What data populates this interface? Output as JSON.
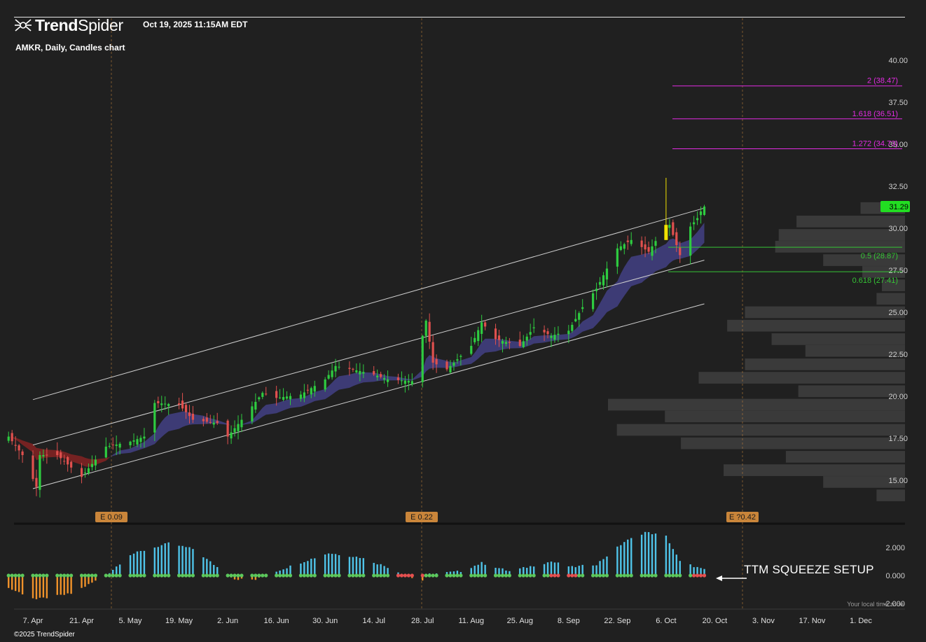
{
  "header": {
    "brand_bold": "Trend",
    "brand_light": "Spider",
    "timestamp": "Oct 19, 2025 11:15AM EDT",
    "chart_title": "AMKR, Daily, Candles chart"
  },
  "footer": {
    "copyright": "©2025 TrendSpider",
    "timezone_note": "Your local time zone"
  },
  "annotation": {
    "text": "TTM SQUEEZE SETUP"
  },
  "colors": {
    "background": "#202020",
    "up_candle": "#2ecc40",
    "down_candle": "#e0504e",
    "highlight_candle": "#f2e200",
    "fib_extension": "#e22be2",
    "fib_retracement": "#35c435",
    "channel_line": "#cfcfcf",
    "ema_band_bull": "#3f3d7a",
    "ema_band_bear": "#7a2323",
    "volume_profile": "#3a3a3a",
    "histogram_pos": "#4fc3e8",
    "histogram_neg": "#f0922a",
    "squeeze_on": "#e65050",
    "squeeze_off": "#5cc85c",
    "earnings_badge": "#c9853a",
    "last_price_badge": "#22dd22"
  },
  "chart_data": [
    {
      "type": "candlestick",
      "symbol": "AMKR",
      "interval": "Daily",
      "y_axis": {
        "range": [
          13.7,
          41.2
        ],
        "ticks": [
          "40.00",
          "37.50",
          "35.00",
          "32.50",
          "30.00",
          "27.50",
          "25.00",
          "22.50",
          "20.00",
          "17.50",
          "15.00"
        ]
      },
      "x_axis": {
        "start_date": "2025-03-31",
        "end_date": "2025-12-08",
        "tick_labels": [
          {
            "label": "7. Apr",
            "date": "2025-04-07"
          },
          {
            "label": "21. Apr",
            "date": "2025-04-21"
          },
          {
            "label": "5. May",
            "date": "2025-05-05"
          },
          {
            "label": "19. May",
            "date": "2025-05-19"
          },
          {
            "label": "2. Jun",
            "date": "2025-06-02"
          },
          {
            "label": "16. Jun",
            "date": "2025-06-16"
          },
          {
            "label": "30. Jun",
            "date": "2025-06-30"
          },
          {
            "label": "14. Jul",
            "date": "2025-07-14"
          },
          {
            "label": "28. Jul",
            "date": "2025-07-28"
          },
          {
            "label": "11. Aug",
            "date": "2025-08-11"
          },
          {
            "label": "25. Aug",
            "date": "2025-08-25"
          },
          {
            "label": "8. Sep",
            "date": "2025-09-08"
          },
          {
            "label": "22. Sep",
            "date": "2025-09-22"
          },
          {
            "label": "6. Oct",
            "date": "2025-10-06"
          },
          {
            "label": "20. Oct",
            "date": "2025-10-20"
          },
          {
            "label": "3. Nov",
            "date": "2025-11-03"
          },
          {
            "label": "17. Nov",
            "date": "2025-11-17"
          },
          {
            "label": "1. Dec",
            "date": "2025-12-01"
          }
        ]
      },
      "last_price": "31.29",
      "anchors": [
        {
          "date": "2025-03-31",
          "close": 17.6
        },
        {
          "date": "2025-04-04",
          "close": 16.5
        },
        {
          "date": "2025-04-08",
          "close": 14.6
        },
        {
          "date": "2025-04-09",
          "close": 16.5
        },
        {
          "date": "2025-04-14",
          "close": 16.5
        },
        {
          "date": "2025-04-21",
          "close": 15.2
        },
        {
          "date": "2025-04-28",
          "close": 17.0
        },
        {
          "date": "2025-05-05",
          "close": 17.3
        },
        {
          "date": "2025-05-09",
          "close": 17.6
        },
        {
          "date": "2025-05-12",
          "close": 19.6
        },
        {
          "date": "2025-05-19",
          "close": 19.5
        },
        {
          "date": "2025-05-23",
          "close": 18.6
        },
        {
          "date": "2025-05-30",
          "close": 18.4
        },
        {
          "date": "2025-06-02",
          "close": 17.6
        },
        {
          "date": "2025-06-06",
          "close": 18.6
        },
        {
          "date": "2025-06-12",
          "close": 20.2
        },
        {
          "date": "2025-06-16",
          "close": 19.9
        },
        {
          "date": "2025-06-23",
          "close": 20.1
        },
        {
          "date": "2025-06-30",
          "close": 21.0
        },
        {
          "date": "2025-07-03",
          "close": 21.8
        },
        {
          "date": "2025-07-10",
          "close": 21.5
        },
        {
          "date": "2025-07-14",
          "close": 21.3
        },
        {
          "date": "2025-07-18",
          "close": 21.0
        },
        {
          "date": "2025-07-25",
          "close": 20.9
        },
        {
          "date": "2025-07-29",
          "close": 24.5
        },
        {
          "date": "2025-07-31",
          "close": 22.0
        },
        {
          "date": "2025-08-04",
          "close": 21.6
        },
        {
          "date": "2025-08-11",
          "close": 23.0
        },
        {
          "date": "2025-08-14",
          "close": 24.4
        },
        {
          "date": "2025-08-18",
          "close": 23.4
        },
        {
          "date": "2025-08-25",
          "close": 23.0
        },
        {
          "date": "2025-08-29",
          "close": 24.1
        },
        {
          "date": "2025-09-03",
          "close": 23.6
        },
        {
          "date": "2025-09-08",
          "close": 23.9
        },
        {
          "date": "2025-09-12",
          "close": 25.3
        },
        {
          "date": "2025-09-16",
          "close": 26.4
        },
        {
          "date": "2025-09-22",
          "close": 28.8
        },
        {
          "date": "2025-09-26",
          "close": 29.3
        },
        {
          "date": "2025-10-01",
          "close": 28.6
        },
        {
          "date": "2025-10-06",
          "close": 30.2
        },
        {
          "date": "2025-10-07",
          "close": 30.2
        },
        {
          "date": "2025-10-10",
          "close": 28.4
        },
        {
          "date": "2025-10-13",
          "close": 30.1
        },
        {
          "date": "2025-10-15",
          "close": 30.6
        },
        {
          "date": "2025-10-16",
          "close": 31.0
        },
        {
          "date": "2025-10-17",
          "close": 31.29
        }
      ],
      "highlight_candle": {
        "date": "2025-10-06",
        "low": 29.3,
        "high": 33.0
      },
      "channel_lines": [
        {
          "name": "upper",
          "from": {
            "date": "2025-04-07",
            "value": 19.8
          },
          "to": {
            "date": "2025-10-17",
            "value": 31.2
          }
        },
        {
          "name": "middle",
          "from": {
            "date": "2025-04-07",
            "value": 17.1
          },
          "to": {
            "date": "2025-10-17",
            "value": 28.1
          }
        },
        {
          "name": "lower",
          "from": {
            "date": "2025-04-07",
            "value": 14.5
          },
          "to": {
            "date": "2025-10-17",
            "value": 25.5
          }
        }
      ],
      "fibonacci_levels": [
        {
          "label": "2 (38.47)",
          "value": 38.47,
          "kind": "extension"
        },
        {
          "label": "1.618 (36.51)",
          "value": 36.51,
          "kind": "extension"
        },
        {
          "label": "1.272 (34.73)",
          "value": 34.73,
          "kind": "extension"
        },
        {
          "label": "0.5 (28.87)",
          "value": 28.87,
          "kind": "retracement"
        },
        {
          "label": "0.618 (27.41)",
          "value": 27.41,
          "kind": "retracement"
        }
      ],
      "volume_profile": [
        {
          "price": 31.2,
          "strength": 0.25
        },
        {
          "price": 30.4,
          "strength": 0.61
        },
        {
          "price": 29.6,
          "strength": 0.71
        },
        {
          "price": 28.9,
          "strength": 0.73
        },
        {
          "price": 28.1,
          "strength": 0.46
        },
        {
          "price": 27.4,
          "strength": 0.24
        },
        {
          "price": 26.6,
          "strength": 0.13
        },
        {
          "price": 25.8,
          "strength": 0.16
        },
        {
          "price": 25.0,
          "strength": 0.9
        },
        {
          "price": 24.2,
          "strength": 1.0
        },
        {
          "price": 23.4,
          "strength": 0.75
        },
        {
          "price": 22.7,
          "strength": 0.56
        },
        {
          "price": 21.9,
          "strength": 0.9
        },
        {
          "price": 21.1,
          "strength": 1.16
        },
        {
          "price": 20.3,
          "strength": 0.6
        },
        {
          "price": 19.5,
          "strength": 1.67
        },
        {
          "price": 18.8,
          "strength": 1.35
        },
        {
          "price": 18.0,
          "strength": 1.62
        },
        {
          "price": 17.2,
          "strength": 1.26
        },
        {
          "price": 16.4,
          "strength": 0.67
        },
        {
          "price": 15.6,
          "strength": 1.02
        },
        {
          "price": 14.9,
          "strength": 0.46
        },
        {
          "price": 14.1,
          "strength": 0.16
        }
      ],
      "earnings_markers": [
        {
          "label": "E 0.09",
          "date": "2025-04-28"
        },
        {
          "label": "E 0.22",
          "date": "2025-07-28"
        },
        {
          "label": "E ?0.42",
          "date": "2025-10-27"
        }
      ]
    },
    {
      "type": "histogram",
      "name": "TTM Squeeze",
      "y_axis": {
        "ticks": [
          "2.000",
          "0.000",
          "-2.000"
        ],
        "range": [
          -2.3,
          3.2
        ]
      },
      "anchors": [
        {
          "date": "2025-03-31",
          "value": -0.9
        },
        {
          "date": "2025-04-08",
          "value": -1.7
        },
        {
          "date": "2025-04-18",
          "value": -1.3
        },
        {
          "date": "2025-04-28",
          "value": 0.0
        },
        {
          "date": "2025-05-05",
          "value": 1.5
        },
        {
          "date": "2025-05-16",
          "value": 2.3
        },
        {
          "date": "2025-05-23",
          "value": 1.9
        },
        {
          "date": "2025-05-30",
          "value": 0.6
        },
        {
          "date": "2025-06-04",
          "value": -0.25
        },
        {
          "date": "2025-06-10",
          "value": -0.3
        },
        {
          "date": "2025-06-17",
          "value": 0.4
        },
        {
          "date": "2025-06-25",
          "value": 1.1
        },
        {
          "date": "2025-07-01",
          "value": 1.6
        },
        {
          "date": "2025-07-10",
          "value": 1.3
        },
        {
          "date": "2025-07-18",
          "value": 0.6
        },
        {
          "date": "2025-07-24",
          "value": -0.1
        },
        {
          "date": "2025-07-28",
          "value": -0.35
        },
        {
          "date": "2025-07-30",
          "value": 0.1
        },
        {
          "date": "2025-08-08",
          "value": 0.3
        },
        {
          "date": "2025-08-14",
          "value": 0.9
        },
        {
          "date": "2025-08-22",
          "value": 0.3
        },
        {
          "date": "2025-09-03",
          "value": 1.0
        },
        {
          "date": "2025-09-09",
          "value": 0.6
        },
        {
          "date": "2025-09-16",
          "value": 0.8
        },
        {
          "date": "2025-09-24",
          "value": 2.4
        },
        {
          "date": "2025-09-30",
          "value": 3.1
        },
        {
          "date": "2025-10-06",
          "value": 2.8
        },
        {
          "date": "2025-10-10",
          "value": 1.0
        },
        {
          "date": "2025-10-17",
          "value": 0.4
        }
      ],
      "squeeze_on_ranges": [
        {
          "from": "2025-07-21",
          "to": "2025-07-28"
        },
        {
          "from": "2025-09-03",
          "to": "2025-09-10"
        },
        {
          "from": "2025-10-14",
          "to": "2025-10-17"
        }
      ]
    }
  ]
}
